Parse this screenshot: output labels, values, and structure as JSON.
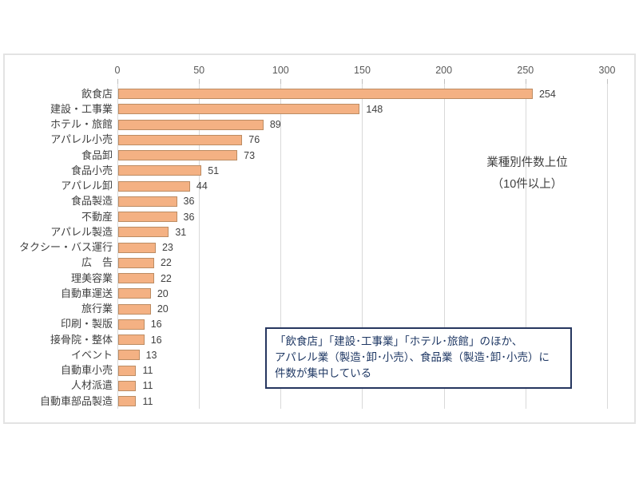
{
  "panel": {
    "background": "#ffffff",
    "border_color": "#e3e3e3"
  },
  "chart_data": {
    "type": "bar",
    "orientation": "horizontal",
    "title": "",
    "xlabel": "",
    "ylabel": "",
    "categories": [
      "飲食店",
      "建設・工事業",
      "ホテル・旅館",
      "アパレル小売",
      "食品卸",
      "食品小売",
      "アパレル卸",
      "食品製造",
      "不動産",
      "アパレル製造",
      "タクシー・バス運行",
      "広　告",
      "理美容業",
      "自動車運送",
      "旅行業",
      "印刷・製版",
      "接骨院・整体",
      "イベント",
      "自動車小売",
      "人材派遣",
      "自動車部品製造"
    ],
    "values": [
      254,
      148,
      89,
      76,
      73,
      51,
      44,
      36,
      36,
      31,
      23,
      22,
      22,
      20,
      20,
      16,
      16,
      13,
      11,
      11,
      11
    ],
    "axis": {
      "min": 0,
      "max": 300,
      "tick_interval": 50,
      "ticks": [
        0,
        50,
        100,
        150,
        200,
        250,
        300
      ],
      "position": "top"
    },
    "grid": true,
    "legend": false,
    "colors": {
      "bar_fill": "#f4b183",
      "bar_border": "#bc8c63",
      "gridline": "#d9d9d9",
      "tick_label": "#595959",
      "category_label": "#404040",
      "value_label": "#404040"
    }
  },
  "annotations": {
    "side_label_line1": "業種別件数上位",
    "side_label_line2": "（10件以上）",
    "callout_line1": "「飲食店」「建設･工事業」「ホテル･旅館」のほか、",
    "callout_line2": "アパレル業（製造･卸･小売）、食品業（製造･卸･小売）に",
    "callout_line3": "件数が集中している",
    "callout_border_color": "#26365f",
    "callout_text_color": "#1f3864"
  }
}
